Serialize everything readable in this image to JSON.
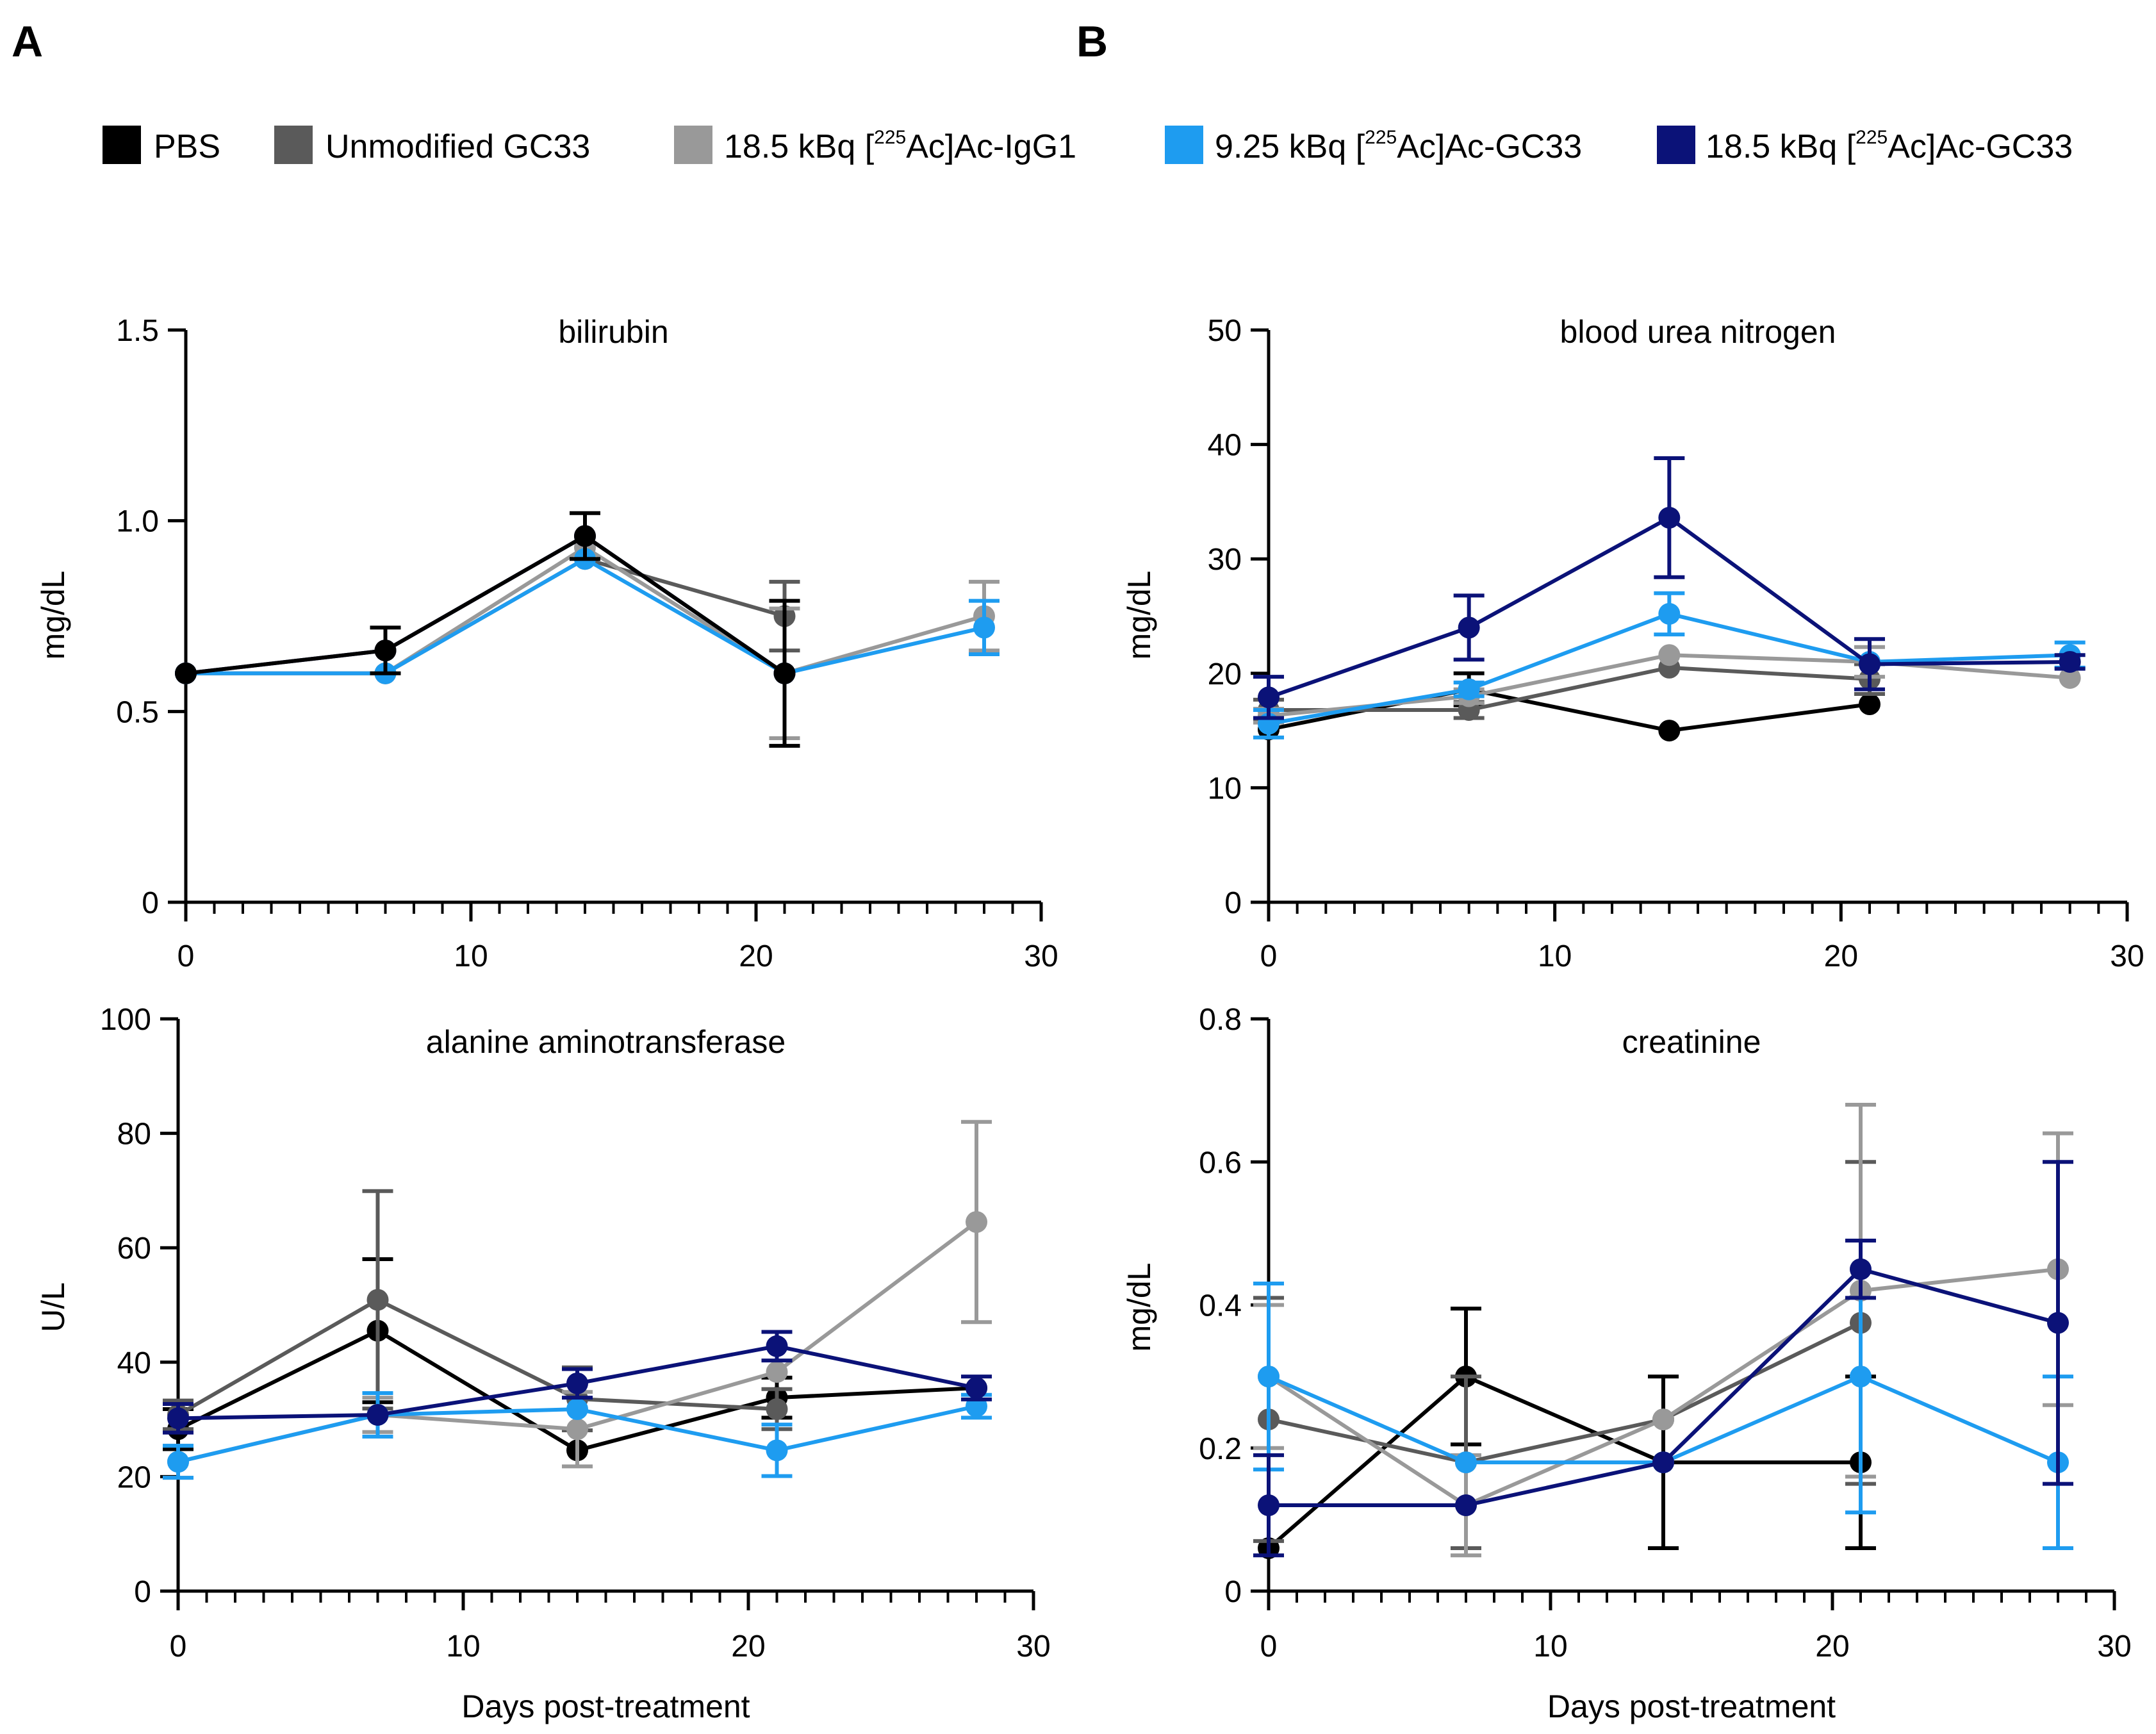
{
  "panel_labels": [
    "A",
    "B"
  ],
  "legend": [
    {
      "pre": "PBS",
      "sup": "",
      "post": "",
      "color": "#000000"
    },
    {
      "pre": "Unmodified GC33",
      "sup": "",
      "post": "",
      "color": "#5a5a5a"
    },
    {
      "pre": "18.5 kBq [",
      "sup": "225",
      "post": "Ac]Ac-IgG1",
      "color": "#999999"
    },
    {
      "pre": "9.25 kBq [",
      "sup": "225",
      "post": "Ac]Ac-GC33",
      "color": "#1e9cf0"
    },
    {
      "pre": "18.5 kBq [",
      "sup": "225",
      "post": "Ac]Ac-GC33",
      "color": "#0b1278"
    }
  ],
  "shared_xlabel": "Days post-treatment",
  "chart_data": [
    {
      "type": "line",
      "title": "bilirubin",
      "ylabel": "mg/dL",
      "xlim": [
        0,
        30
      ],
      "ylim": [
        0,
        1.5
      ],
      "xticks": [
        "0",
        "10",
        "20",
        "30"
      ],
      "yticks": [
        "0",
        "0.5",
        "1.0",
        "1.5"
      ],
      "ytick_values": [
        0,
        0.5,
        1.0,
        1.5
      ],
      "xlabel": "",
      "series": [
        {
          "name": "Unmodified GC33",
          "x": [
            0,
            7,
            14,
            21
          ],
          "y": [
            0.6,
            0.6,
            0.9,
            0.75
          ],
          "err": [
            0,
            0,
            0,
            0.09
          ]
        },
        {
          "name": "18.5 kBq [225Ac]Ac-IgG1",
          "x": [
            0,
            7,
            14,
            21,
            28
          ],
          "y": [
            0.6,
            0.6,
            0.93,
            0.6,
            0.75
          ],
          "err": [
            0,
            0,
            0,
            0.17,
            0.09
          ]
        },
        {
          "name": "9.25 kBq [225Ac]Ac-GC33",
          "x": [
            0,
            7,
            14,
            21,
            28
          ],
          "y": [
            0.6,
            0.6,
            0.9,
            0.6,
            0.72
          ],
          "err": [
            0,
            0,
            0,
            0,
            0.07
          ]
        },
        {
          "name": "18.5 kBq [225Ac]Ac-GC33",
          "x": [
            0,
            7,
            14,
            21
          ],
          "y": [
            0.6,
            0.66,
            0.96,
            0.6
          ],
          "err": [
            0,
            0,
            0,
            0
          ]
        },
        {
          "name": "PBS",
          "x": [
            0,
            7,
            14,
            21
          ],
          "y": [
            0.6,
            0.66,
            0.96,
            0.6
          ],
          "err": [
            0,
            0.06,
            0.06,
            0.19
          ]
        }
      ]
    },
    {
      "type": "line",
      "title": "blood urea nitrogen",
      "ylabel": "mg/dL",
      "xlim": [
        0,
        30
      ],
      "ylim": [
        0,
        50
      ],
      "xticks": [
        "0",
        "10",
        "20",
        "30"
      ],
      "yticks": [
        "0",
        "10",
        "20",
        "30",
        "40",
        "50"
      ],
      "ytick_values": [
        0,
        10,
        20,
        30,
        40,
        50
      ],
      "xlabel": "",
      "series": [
        {
          "name": "PBS",
          "x": [
            0,
            7,
            14,
            21
          ],
          "y": [
            15.1,
            18.6,
            15.0,
            17.3
          ],
          "err": [
            0,
            1.4,
            0,
            0
          ]
        },
        {
          "name": "Unmodified GC33",
          "x": [
            0,
            7,
            14,
            21
          ],
          "y": [
            16.8,
            16.8,
            20.5,
            19.5
          ],
          "err": [
            0.9,
            0.7,
            0,
            1.3
          ]
        },
        {
          "name": "18.5 kBq [225Ac]Ac-IgG1",
          "x": [
            0,
            7,
            14,
            21,
            28
          ],
          "y": [
            16.3,
            18.0,
            21.6,
            21.0,
            19.6
          ],
          "err": [
            0.6,
            0.6,
            0,
            1.3,
            0
          ]
        },
        {
          "name": "9.25 kBq [225Ac]Ac-GC33",
          "x": [
            0,
            7,
            14,
            21,
            28
          ],
          "y": [
            15.6,
            18.6,
            25.2,
            21.0,
            21.6
          ],
          "err": [
            1.2,
            0.6,
            1.8,
            0,
            1.1
          ]
        },
        {
          "name": "18.5 kBq [225Ac]Ac-GC33",
          "x": [
            0,
            7,
            14,
            21,
            28
          ],
          "y": [
            17.9,
            24.0,
            33.6,
            20.8,
            21.0
          ],
          "err": [
            1.8,
            2.8,
            5.2,
            2.2,
            0.6
          ]
        }
      ]
    },
    {
      "type": "line",
      "title": "alanine aminotransferase",
      "ylabel": "U/L",
      "xlim": [
        0,
        30
      ],
      "ylim": [
        0,
        100
      ],
      "xticks": [
        "0",
        "10",
        "20",
        "30"
      ],
      "yticks": [
        "0",
        "20",
        "40",
        "60",
        "80",
        "100"
      ],
      "ytick_values": [
        0,
        20,
        40,
        60,
        80,
        100
      ],
      "xlabel": "Days post-treatment",
      "series": [
        {
          "name": "PBS",
          "x": [
            0,
            7,
            14,
            21,
            28
          ],
          "y": [
            28.3,
            45.5,
            24.6,
            33.8,
            35.5
          ],
          "err": [
            3.5,
            12.5,
            0,
            3.5,
            0
          ]
        },
        {
          "name": "Unmodified GC33",
          "x": [
            0,
            7,
            14,
            21
          ],
          "y": [
            30.8,
            50.9,
            33.6,
            31.8
          ],
          "err": [
            2.5,
            19.0,
            5.5,
            3.5
          ]
        },
        {
          "name": "18.5 kBq [225Ac]Ac-IgG1",
          "x": [
            0,
            7,
            14,
            21,
            28
          ],
          "y": [
            22.6,
            30.8,
            28.3,
            38.3,
            64.5
          ],
          "err": [
            2.8,
            3.0,
            6.5,
            0,
            17.5
          ]
        },
        {
          "name": "9.25 kBq [225Ac]Ac-GC33",
          "x": [
            0,
            7,
            14,
            21,
            28
          ],
          "y": [
            22.6,
            30.8,
            31.8,
            24.6,
            32.3
          ],
          "err": [
            2.8,
            3.8,
            0,
            4.5,
            2.0
          ]
        },
        {
          "name": "18.5 kBq [225Ac]Ac-GC33",
          "x": [
            0,
            7,
            14,
            21,
            28
          ],
          "y": [
            30.2,
            30.8,
            36.3,
            42.8,
            35.5
          ],
          "err": [
            2.5,
            0,
            2.5,
            2.5,
            2.0
          ]
        }
      ]
    },
    {
      "type": "line",
      "title": "creatinine",
      "ylabel": "mg/dL",
      "xlim": [
        0,
        30
      ],
      "ylim": [
        0,
        0.8
      ],
      "xticks": [
        "0",
        "10",
        "20",
        "30"
      ],
      "yticks": [
        "0",
        "0.2",
        "0.4",
        "0.6",
        "0.8"
      ],
      "ytick_values": [
        0,
        0.2,
        0.4,
        0.6,
        0.8
      ],
      "xlabel": "Days post-treatment",
      "series": [
        {
          "name": "PBS",
          "x": [
            0,
            7,
            14,
            21
          ],
          "y": [
            0.06,
            0.3,
            0.18,
            0.18
          ],
          "err": [
            0,
            0.095,
            0.12,
            0.12
          ]
        },
        {
          "name": "Unmodified GC33",
          "x": [
            0,
            7,
            14,
            21
          ],
          "y": [
            0.24,
            0.18,
            0.24,
            0.375
          ],
          "err": [
            0.17,
            0.12,
            0,
            0.225
          ]
        },
        {
          "name": "18.5 kBq [225Ac]Ac-IgG1",
          "x": [
            0,
            7,
            14,
            21,
            28
          ],
          "y": [
            0.3,
            0.12,
            0.24,
            0.42,
            0.45
          ],
          "err": [
            0.1,
            0.07,
            0,
            0.26,
            0.19
          ]
        },
        {
          "name": "9.25 kBq [225Ac]Ac-GC33",
          "x": [
            0,
            7,
            14,
            21,
            28
          ],
          "y": [
            0.3,
            0.18,
            0.18,
            0.3,
            0.18
          ],
          "err": [
            0.13,
            0,
            0,
            0.19,
            0.12
          ]
        },
        {
          "name": "18.5 kBq [225Ac]Ac-GC33",
          "x": [
            0,
            7,
            14,
            21,
            28
          ],
          "y": [
            0.12,
            0.12,
            0.18,
            0.45,
            0.375
          ],
          "err": [
            0.07,
            0,
            0,
            0.04,
            0.225
          ]
        }
      ]
    }
  ]
}
